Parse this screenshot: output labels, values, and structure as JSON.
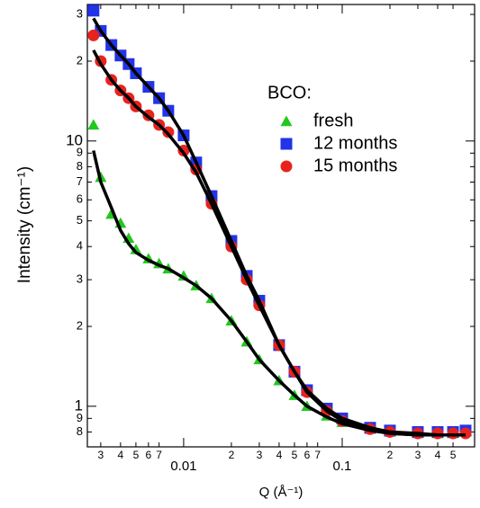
{
  "chart_data": {
    "type": "scatter",
    "ylabel": "Intensity (cm⁻¹)",
    "xlabel": "Q (Å⁻¹)",
    "legend_title": "BCO:",
    "legend": "upper-right",
    "xscale": "log",
    "yscale": "log",
    "x": [
      0.0027,
      0.003,
      0.0035,
      0.004,
      0.0045,
      0.005,
      0.006,
      0.007,
      0.008,
      0.01,
      0.012,
      0.015,
      0.02,
      0.025,
      0.03,
      0.04,
      0.05,
      0.06,
      0.08,
      0.1,
      0.15,
      0.2,
      0.3,
      0.4,
      0.5,
      0.6
    ],
    "series": [
      {
        "name": "fresh",
        "color": "#22c71e",
        "marker": "triangle",
        "values": [
          11.5,
          7.3,
          5.3,
          4.9,
          4.3,
          3.9,
          3.6,
          3.45,
          3.3,
          3.1,
          2.85,
          2.55,
          2.1,
          1.75,
          1.5,
          1.25,
          1.1,
          1.0,
          0.92,
          0.87,
          0.82,
          0.8,
          0.79,
          0.79,
          0.79,
          0.8
        ]
      },
      {
        "name": "12 months",
        "color": "#2233e8",
        "marker": "square",
        "values": [
          31,
          26,
          23,
          21,
          19.5,
          18,
          16,
          14.5,
          13,
          10.5,
          8.3,
          6.2,
          4.2,
          3.1,
          2.5,
          1.7,
          1.35,
          1.15,
          0.98,
          0.9,
          0.83,
          0.81,
          0.8,
          0.8,
          0.8,
          0.81
        ]
      },
      {
        "name": "15 months",
        "color": "#e8231e",
        "marker": "circle",
        "values": [
          25,
          20,
          17,
          15.5,
          14.5,
          13.5,
          12.5,
          11.5,
          10.8,
          9.2,
          7.8,
          5.8,
          4.0,
          3.0,
          2.4,
          1.7,
          1.35,
          1.13,
          0.96,
          0.88,
          0.82,
          0.8,
          0.79,
          0.79,
          0.79,
          0.79
        ]
      }
    ],
    "fits": [
      {
        "color": "#000000",
        "values": [
          9.2,
          7.0,
          5.6,
          4.6,
          4.1,
          3.8,
          3.55,
          3.4,
          3.3,
          3.05,
          2.85,
          2.55,
          2.1,
          1.75,
          1.5,
          1.25,
          1.1,
          1.0,
          0.91,
          0.86,
          0.81,
          0.79,
          0.78,
          0.78,
          0.78,
          0.78
        ]
      },
      {
        "color": "#000000",
        "values": [
          29,
          26,
          23,
          21,
          19.5,
          18,
          16,
          14.5,
          13,
          10.5,
          8.3,
          6.2,
          4.2,
          3.1,
          2.5,
          1.7,
          1.35,
          1.15,
          0.98,
          0.9,
          0.83,
          0.8,
          0.79,
          0.78,
          0.78,
          0.78
        ]
      },
      {
        "color": "#000000",
        "values": [
          22,
          19.5,
          17,
          15.5,
          14.5,
          13.5,
          12.3,
          11.5,
          10.6,
          9.0,
          7.6,
          5.8,
          4.0,
          3.0,
          2.4,
          1.7,
          1.35,
          1.13,
          0.96,
          0.88,
          0.82,
          0.79,
          0.78,
          0.78,
          0.78,
          0.78
        ]
      }
    ],
    "xlim": [
      0.00247,
      0.684
    ],
    "ylim": [
      0.703,
      32.7
    ],
    "xticks": [
      {
        "value": 0.003,
        "label": "3"
      },
      {
        "value": 0.004,
        "label": "4"
      },
      {
        "value": 0.005,
        "label": "5"
      },
      {
        "value": 0.006,
        "label": "6"
      },
      {
        "value": 0.007,
        "label": "7"
      },
      0.01,
      {
        "value": 0.02,
        "label": "2"
      },
      {
        "value": 0.03,
        "label": "3"
      },
      {
        "value": 0.04,
        "label": "4"
      },
      {
        "value": 0.05,
        "label": "5"
      },
      {
        "value": 0.06,
        "label": "6"
      },
      {
        "value": 0.07,
        "label": "7"
      },
      0.1,
      {
        "value": 0.2,
        "label": "2"
      },
      {
        "value": 0.3,
        "label": "3"
      },
      {
        "value": 0.4,
        "label": "4"
      },
      {
        "value": 0.5,
        "label": "5"
      }
    ],
    "yticks": [
      {
        "value": 0.8,
        "label": "8"
      },
      {
        "value": 0.9,
        "label": "9"
      },
      1,
      2,
      3,
      4,
      5,
      6,
      7,
      8,
      9,
      10,
      {
        "value": 20,
        "label": "2"
      },
      {
        "value": 30,
        "label": "3"
      }
    ]
  }
}
